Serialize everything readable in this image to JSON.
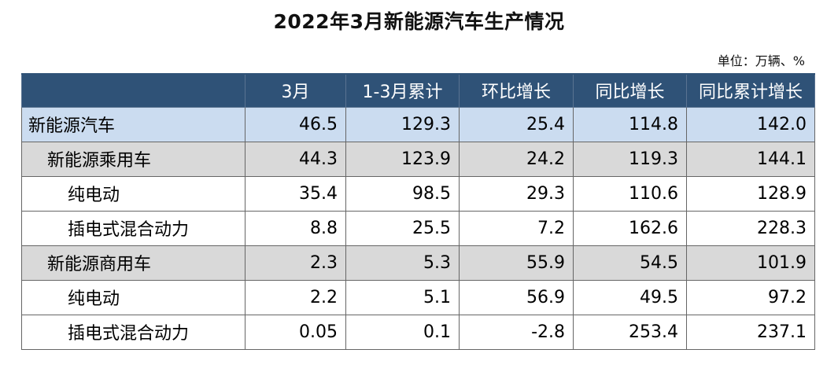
{
  "title": "2022年3月新能源汽车生产情况",
  "unit": "单位：万辆、%",
  "table": {
    "headers": [
      "",
      "3月",
      "1-3月累计",
      "环比增长",
      "同比增长",
      "同比累计增长"
    ],
    "rows": [
      {
        "name": "新能源汽车",
        "level": 0,
        "values": [
          "46.5",
          "129.3",
          "25.4",
          "114.8",
          "142.0"
        ]
      },
      {
        "name": "新能源乘用车",
        "level": 1,
        "values": [
          "44.3",
          "123.9",
          "24.2",
          "119.3",
          "144.1"
        ]
      },
      {
        "name": "纯电动",
        "level": 2,
        "values": [
          "35.4",
          "98.5",
          "29.3",
          "110.6",
          "128.9"
        ]
      },
      {
        "name": "插电式混合动力",
        "level": 2,
        "values": [
          "8.8",
          "25.5",
          "7.2",
          "162.6",
          "228.3"
        ]
      },
      {
        "name": "新能源商用车",
        "level": 1,
        "values": [
          "2.3",
          "5.3",
          "55.9",
          "54.5",
          "101.9"
        ]
      },
      {
        "name": "纯电动",
        "level": 2,
        "values": [
          "2.2",
          "5.1",
          "56.9",
          "49.5",
          "97.2"
        ]
      },
      {
        "name": "插电式混合动力",
        "level": 2,
        "values": [
          "0.05",
          "0.1",
          "-2.8",
          "253.4",
          "237.1"
        ]
      }
    ]
  },
  "colors": {
    "header_bg": "#2f5277",
    "total_row_bg": "#cbdcf0",
    "category_row_bg": "#d9d9d9",
    "detail_row_bg": "#ffffff"
  }
}
